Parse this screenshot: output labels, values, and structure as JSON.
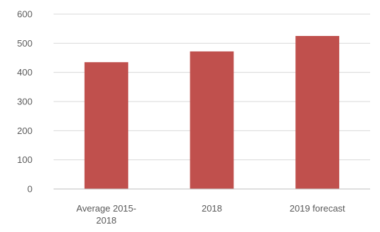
{
  "chart_data": {
    "type": "bar",
    "categories": [
      [
        "Average 2015-",
        "2018"
      ],
      [
        "2018"
      ],
      [
        "2019 forecast"
      ]
    ],
    "category_labels": [
      "Average 2015-2018",
      "2018",
      "2019 forecast"
    ],
    "values": [
      435,
      472,
      525
    ],
    "ylim": [
      0,
      600
    ],
    "yticks": [
      0,
      100,
      200,
      300,
      400,
      500,
      600
    ],
    "title": "",
    "xlabel": "",
    "ylabel": "",
    "grid": true,
    "legend": "none",
    "colors": {
      "bar": "#c0504d",
      "gridline": "#d9d9d9",
      "axis": "#bfbfbf",
      "text": "#595959"
    }
  }
}
